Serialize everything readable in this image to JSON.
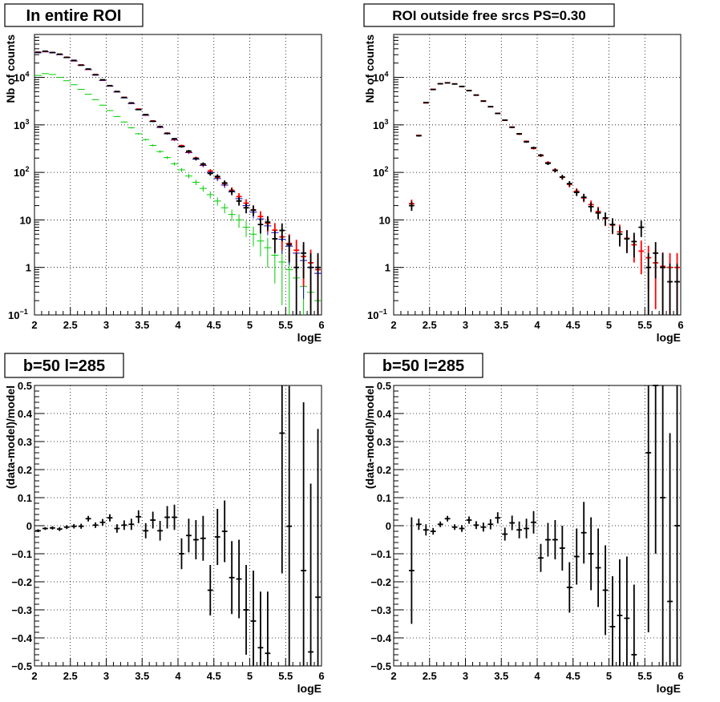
{
  "chart_data": [
    {
      "type": "scatter",
      "title": "In entire ROI",
      "xlabel": "logE",
      "ylabel": "Nb of counts",
      "xlim": [
        2,
        6
      ],
      "ylim": [
        0.1,
        80000
      ],
      "yscale": "log",
      "grid": true,
      "xticks": [
        "2",
        "2.5",
        "3",
        "3.5",
        "4",
        "4.5",
        "5",
        "5.5",
        "6"
      ],
      "yticks": [
        {
          "v": 0.1,
          "base": "10",
          "exp": "−1"
        },
        {
          "v": 1,
          "base": "1",
          "exp": ""
        },
        {
          "v": 10,
          "base": "10",
          "exp": ""
        },
        {
          "v": 100,
          "base": "10",
          "exp": "2"
        },
        {
          "v": 1000,
          "base": "10",
          "exp": "3"
        },
        {
          "v": 10000,
          "base": "10",
          "exp": "4"
        }
      ],
      "x": [
        2.05,
        2.15,
        2.25,
        2.35,
        2.45,
        2.55,
        2.65,
        2.75,
        2.85,
        2.95,
        3.05,
        3.15,
        3.25,
        3.35,
        3.45,
        3.55,
        3.65,
        3.75,
        3.85,
        3.95,
        4.05,
        4.15,
        4.25,
        4.35,
        4.45,
        4.55,
        4.65,
        4.75,
        4.85,
        4.95,
        5.05,
        5.15,
        5.25,
        5.35,
        5.45,
        5.55,
        5.65,
        5.75,
        5.85,
        5.95
      ],
      "series": [
        {
          "color": "#00cc00",
          "style": "histogram",
          "values": [
            11000,
            12000,
            11500,
            10000,
            8500,
            7000,
            5600,
            4400,
            3400,
            2600,
            2000,
            1500,
            1150,
            870,
            650,
            490,
            370,
            275,
            205,
            152,
            113,
            84,
            62,
            46,
            34,
            25,
            18,
            13,
            10,
            7,
            5,
            3.6,
            2.6,
            1.8,
            1.3,
            0.9,
            0.6,
            0.4,
            0.3,
            0.2
          ]
        },
        {
          "color": "#0000cc",
          "style": "histogram",
          "values": [
            33000,
            34500,
            33000,
            30000,
            26000,
            22000,
            18000,
            14500,
            11200,
            8600,
            6500,
            4900,
            3700,
            2800,
            2100,
            1580,
            1180,
            880,
            650,
            480,
            355,
            260,
            190,
            140,
            100,
            74,
            54,
            39,
            28,
            20,
            14.5,
            10.5,
            7.5,
            5.4,
            3.9,
            2.8,
            2,
            1.4,
            1,
            0.75
          ]
        },
        {
          "color": "#ff0000",
          "style": "errorbar",
          "values": [
            34000,
            35000,
            33500,
            30500,
            26500,
            22500,
            18300,
            14800,
            11500,
            8800,
            6650,
            5000,
            3800,
            2870,
            2150,
            1620,
            1210,
            905,
            670,
            495,
            365,
            270,
            200,
            146,
            107,
            79,
            58,
            42,
            31,
            22.5,
            16.3,
            11.8,
            8.5,
            6.1,
            4.4,
            3.2,
            2.3,
            1.7,
            1.25,
            0.9
          ]
        },
        {
          "color": "#000000",
          "style": "errorbar",
          "values": [
            33500,
            35500,
            33200,
            30800,
            26300,
            22800,
            18000,
            15000,
            11300,
            8900,
            6700,
            5050,
            3760,
            2900,
            2100,
            1650,
            1190,
            920,
            660,
            510,
            350,
            280,
            195,
            150,
            95,
            82,
            60,
            40,
            25,
            18,
            16,
            8,
            9,
            4,
            6,
            3,
            1,
            2,
            1,
            1
          ]
        }
      ]
    },
    {
      "type": "scatter",
      "title": "ROI outside free srcs PS=0.30",
      "xlabel": "logE",
      "ylabel": "Nb of counts",
      "xlim": [
        2,
        6
      ],
      "ylim": [
        0.1,
        80000
      ],
      "yscale": "log",
      "grid": true,
      "xticks": [
        "2",
        "2.5",
        "3",
        "3.5",
        "4",
        "4.5",
        "5",
        "5.5",
        "6"
      ],
      "yticks": [
        {
          "v": 0.1,
          "base": "10",
          "exp": "−1"
        },
        {
          "v": 1,
          "base": "1",
          "exp": ""
        },
        {
          "v": 10,
          "base": "10",
          "exp": ""
        },
        {
          "v": 100,
          "base": "10",
          "exp": "2"
        },
        {
          "v": 1000,
          "base": "10",
          "exp": "3"
        },
        {
          "v": 10000,
          "base": "10",
          "exp": "4"
        }
      ],
      "x": [
        2.25,
        2.35,
        2.45,
        2.55,
        2.65,
        2.75,
        2.85,
        2.95,
        3.05,
        3.15,
        3.25,
        3.35,
        3.45,
        3.55,
        3.65,
        3.75,
        3.85,
        3.95,
        4.05,
        4.15,
        4.25,
        4.35,
        4.45,
        4.55,
        4.65,
        4.75,
        4.85,
        4.95,
        5.05,
        5.15,
        5.25,
        5.35,
        5.45,
        5.55,
        5.65,
        5.75,
        5.85,
        5.95
      ],
      "series": [
        {
          "color": "#ff0000",
          "style": "errorbar",
          "values": [
            22,
            600,
            2900,
            5600,
            7300,
            7700,
            7300,
            6400,
            5300,
            4200,
            3200,
            2400,
            1750,
            1250,
            900,
            640,
            450,
            320,
            225,
            160,
            112,
            79,
            56,
            40,
            29,
            21,
            15,
            10.7,
            7.8,
            5.6,
            4.1,
            3,
            2.2,
            1.6,
            1.25,
            1.05,
            1,
            1
          ]
        },
        {
          "color": "#000000",
          "style": "errorbar",
          "values": [
            20,
            590,
            2950,
            5550,
            7350,
            7650,
            7250,
            6450,
            5250,
            4250,
            3150,
            2420,
            1740,
            1260,
            890,
            650,
            440,
            330,
            230,
            155,
            110,
            80,
            58,
            38,
            30,
            19,
            14,
            11,
            8,
            5,
            4,
            3.5,
            7,
            1,
            2,
            1,
            0.5,
            0.5
          ]
        }
      ]
    },
    {
      "type": "scatter",
      "title": "b=50 l=285",
      "xlabel": "logE",
      "ylabel": "(data-model)/model",
      "xlim": [
        2,
        6
      ],
      "ylim": [
        -0.5,
        0.5
      ],
      "grid": true,
      "xticks": [
        "2",
        "2.5",
        "3",
        "3.5",
        "4",
        "4.5",
        "5",
        "5.5",
        "6"
      ],
      "yticks": [
        "−0.5",
        "−0.4",
        "−0.3",
        "−0.2",
        "−0.1",
        "0",
        "0.1",
        "0.2",
        "0.3",
        "0.4",
        "0.5"
      ],
      "x": [
        2.05,
        2.15,
        2.25,
        2.35,
        2.45,
        2.55,
        2.65,
        2.75,
        2.85,
        2.95,
        3.05,
        3.15,
        3.25,
        3.35,
        3.45,
        3.55,
        3.65,
        3.75,
        3.85,
        3.95,
        4.05,
        4.15,
        4.25,
        4.35,
        4.45,
        4.55,
        4.65,
        4.75,
        4.85,
        4.95,
        5.05,
        5.15,
        5.25,
        5.45,
        5.55,
        5.75,
        5.85,
        5.95
      ],
      "values": [
        -0.018,
        -0.01,
        -0.008,
        -0.012,
        -0.005,
        -0.002,
        -0.002,
        0.025,
        0.002,
        0.012,
        0.028,
        -0.01,
        0.002,
        0.005,
        0.032,
        -0.018,
        0.02,
        -0.018,
        0.03,
        0.03,
        -0.1,
        -0.035,
        -0.05,
        -0.045,
        -0.23,
        -0.04,
        -0.02,
        -0.185,
        -0.19,
        -0.3,
        -0.34,
        -0.435,
        -0.455,
        0.33,
        -0.002,
        -0.16,
        -0.45,
        -0.255
      ],
      "errors": [
        0.005,
        0.005,
        0.006,
        0.007,
        0.007,
        0.008,
        0.009,
        0.01,
        0.01,
        0.012,
        0.013,
        0.015,
        0.017,
        0.02,
        0.023,
        0.027,
        0.03,
        0.035,
        0.04,
        0.045,
        0.055,
        0.06,
        0.07,
        0.08,
        0.09,
        0.1,
        0.11,
        0.13,
        0.14,
        0.16,
        0.18,
        0.2,
        0.22,
        0.5,
        0.5,
        0.6,
        0.6,
        0.6
      ]
    },
    {
      "type": "scatter",
      "title": "b=50 l=285",
      "xlabel": "logE",
      "ylabel": "(data-model)/model",
      "xlim": [
        2,
        6
      ],
      "ylim": [
        -0.5,
        0.5
      ],
      "grid": true,
      "xticks": [
        "2",
        "2.5",
        "3",
        "3.5",
        "4",
        "4.5",
        "5",
        "5.5",
        "6"
      ],
      "yticks": [
        "−0.5",
        "−0.4",
        "−0.3",
        "−0.2",
        "−0.1",
        "0",
        "0.1",
        "0.2",
        "0.3",
        "0.4",
        "0.5"
      ],
      "x": [
        2.25,
        2.35,
        2.45,
        2.55,
        2.65,
        2.75,
        2.85,
        2.95,
        3.05,
        3.15,
        3.25,
        3.35,
        3.45,
        3.55,
        3.65,
        3.75,
        3.85,
        3.95,
        4.05,
        4.15,
        4.25,
        4.35,
        4.45,
        4.55,
        4.65,
        4.75,
        4.85,
        4.95,
        5.05,
        5.15,
        5.25,
        5.35,
        5.55,
        5.65,
        5.75,
        5.85,
        5.95
      ],
      "values": [
        -0.16,
        0.005,
        -0.015,
        -0.02,
        0.005,
        0.025,
        -0.005,
        -0.01,
        0.02,
        0.002,
        -0.005,
        0.005,
        0.028,
        -0.03,
        0.01,
        -0.015,
        -0.01,
        0.012,
        -0.115,
        -0.05,
        -0.05,
        -0.08,
        -0.22,
        -0.11,
        -0.025,
        -0.1,
        -0.15,
        -0.23,
        -0.36,
        -0.32,
        -0.33,
        -0.46,
        0.26,
        0.5,
        0.1,
        -0.27,
        0
      ],
      "errors": [
        0.19,
        0.02,
        0.02,
        0.012,
        0.01,
        0.01,
        0.01,
        0.012,
        0.013,
        0.014,
        0.016,
        0.018,
        0.02,
        0.023,
        0.026,
        0.03,
        0.035,
        0.04,
        0.05,
        0.06,
        0.07,
        0.08,
        0.09,
        0.1,
        0.11,
        0.13,
        0.14,
        0.16,
        0.18,
        0.2,
        0.22,
        0.25,
        0.64,
        0.6,
        0.6,
        0.6,
        0.6
      ]
    }
  ]
}
